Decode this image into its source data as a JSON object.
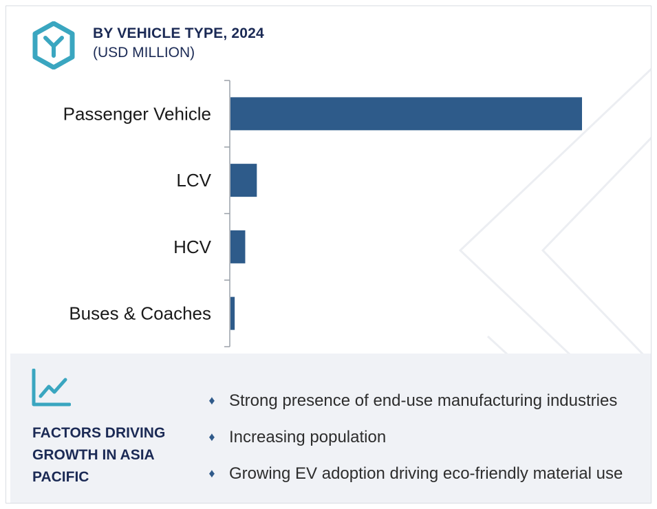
{
  "header": {
    "title": "BY VEHICLE TYPE, 2024",
    "subtitle": "(USD MILLION)"
  },
  "colors": {
    "bar": "#2e5b8a",
    "accent": "#3aa6c0",
    "navy": "#1b2a55",
    "panel": "#f0f2f6"
  },
  "icons": {
    "logo": "hexagon-y-logo-icon",
    "factors": "line-chart-growth-icon",
    "bullet": "diamond-bullet-icon"
  },
  "chart_data": {
    "type": "bar",
    "orientation": "horizontal",
    "categories": [
      "Passenger Vehicle",
      "LCV",
      "HCV",
      "Buses & Coaches"
    ],
    "values": [
      100,
      7.5,
      4.2,
      1.2
    ],
    "xlim": [
      0,
      100
    ],
    "title": "BY VEHICLE TYPE, 2024",
    "subtitle": "(USD MILLION)",
    "xlabel": "",
    "ylabel": "",
    "grid": false,
    "value_axis_visible": false
  },
  "factors": {
    "title": "FACTORS DRIVING GROWTH IN ASIA PACIFIC",
    "items": [
      "Strong presence of end-use manufacturing industries",
      "Increasing population",
      "Growing EV adoption driving eco-friendly material use"
    ]
  }
}
